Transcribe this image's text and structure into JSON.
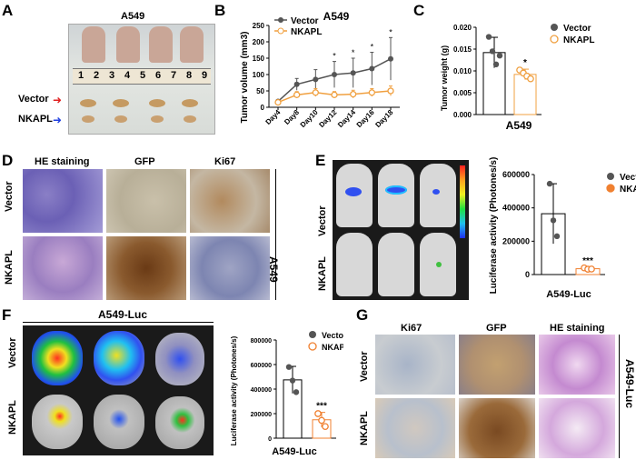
{
  "panels": {
    "A": {
      "label": "A",
      "title": "A549",
      "ruler_digits": [
        "1",
        "2",
        "3",
        "4",
        "5",
        "6",
        "7",
        "8",
        "9"
      ],
      "row_labels": [
        "Vector",
        "NKAPL"
      ]
    },
    "B": {
      "label": "B"
    },
    "C": {
      "label": "C"
    },
    "D": {
      "label": "D",
      "col_headers": [
        "HE staining",
        "GFP",
        "Ki67"
      ],
      "row_labels": [
        "Vector",
        "NKAPL"
      ],
      "side_label": "A549"
    },
    "E": {
      "label": "E",
      "row_labels": [
        "Vector",
        "NKAPL"
      ]
    },
    "F": {
      "label": "F",
      "title": "A549-Luc",
      "row_labels": [
        "Vector",
        "NKAPL"
      ]
    },
    "G": {
      "label": "G",
      "col_headers": [
        "Ki67",
        "GFP",
        "HE staining"
      ],
      "row_labels": [
        "Vector",
        "NKAPL"
      ],
      "side_label": "A549-Luc"
    }
  },
  "chart_data": [
    {
      "id": "B",
      "type": "line",
      "title": "A549",
      "ylabel": "Tumor volume (mm3)",
      "categories": [
        "Day4",
        "Day8",
        "Day10",
        "Day12",
        "Day14",
        "Day16",
        "Day18"
      ],
      "ylim": [
        0,
        250
      ],
      "yticks": [
        "0",
        "50",
        "100",
        "150",
        "200",
        "250"
      ],
      "series": [
        {
          "name": "Vector",
          "values": [
            18,
            70,
            85,
            100,
            105,
            118,
            148
          ],
          "errors": [
            5,
            18,
            30,
            40,
            45,
            50,
            65
          ]
        },
        {
          "name": "NKAPL",
          "values": [
            15,
            38,
            45,
            38,
            40,
            45,
            50
          ],
          "errors": [
            4,
            10,
            12,
            10,
            12,
            12,
            15
          ]
        }
      ],
      "significance": [
        {
          "category": "Day12",
          "mark": "*"
        },
        {
          "category": "Day14",
          "mark": "*"
        },
        {
          "category": "Day16",
          "mark": "*"
        },
        {
          "category": "Day18",
          "mark": "*"
        }
      ],
      "colors": {
        "Vector": "#555555",
        "NKAPL": "#f0a040"
      }
    },
    {
      "id": "C",
      "type": "bar",
      "ylabel": "Tumor weight (g)",
      "xlabel": "A549",
      "ylim": [
        0,
        0.02
      ],
      "yticks": [
        "0.000",
        "0.005",
        "0.010",
        "0.015",
        "0.020"
      ],
      "series": [
        {
          "name": "Vector",
          "values": [
            0.0142
          ],
          "errors": [
            0.0035
          ],
          "points": [
            0.0178,
            0.0145,
            0.0115,
            0.0135
          ]
        },
        {
          "name": "NKAPL",
          "values": [
            0.0092
          ],
          "errors": [
            0.0012
          ],
          "points": [
            0.0102,
            0.0095,
            0.0088,
            0.0082
          ]
        }
      ],
      "significance": [
        {
          "series": "NKAPL",
          "mark": "*"
        }
      ],
      "colors": {
        "Vector": "#555555",
        "NKAPL": "#f0a040"
      }
    },
    {
      "id": "E",
      "type": "bar",
      "ylabel": "Luciferase activity (Photones/s)",
      "xlabel": "A549-Luc",
      "ylim": [
        0,
        600000
      ],
      "yticks": [
        "0",
        "200000",
        "400000",
        "600000"
      ],
      "series": [
        {
          "name": "Vector",
          "values": [
            365000
          ],
          "errors": [
            180000
          ],
          "points": [
            545000,
            325000,
            230000
          ]
        },
        {
          "name": "NKAPL",
          "values": [
            35000
          ],
          "errors": [
            8000
          ],
          "points": [
            40000,
            32000,
            33000
          ]
        }
      ],
      "significance": [
        {
          "series": "NKAPL",
          "mark": "***"
        }
      ],
      "colors": {
        "Vector": "#555555",
        "NKAPL": "#f08030"
      }
    },
    {
      "id": "F",
      "type": "bar",
      "ylabel": "Luciferase activity (Photones/s)",
      "xlabel": "A549-Luc",
      "ylim": [
        0,
        800000
      ],
      "yticks": [
        "0",
        "200000",
        "400000",
        "600000",
        "800000"
      ],
      "series": [
        {
          "name": "Vector",
          "values": [
            475000
          ],
          "errors": [
            110000
          ],
          "points": [
            580000,
            470000,
            375000
          ]
        },
        {
          "name": "NKAPL",
          "values": [
            150000
          ],
          "errors": [
            60000
          ],
          "points": [
            200000,
            145000,
            95000
          ]
        }
      ],
      "significance": [
        {
          "series": "NKAPL",
          "mark": "***"
        }
      ],
      "colors": {
        "Vector": "#555555",
        "NKAPL": "#f08030"
      }
    }
  ]
}
